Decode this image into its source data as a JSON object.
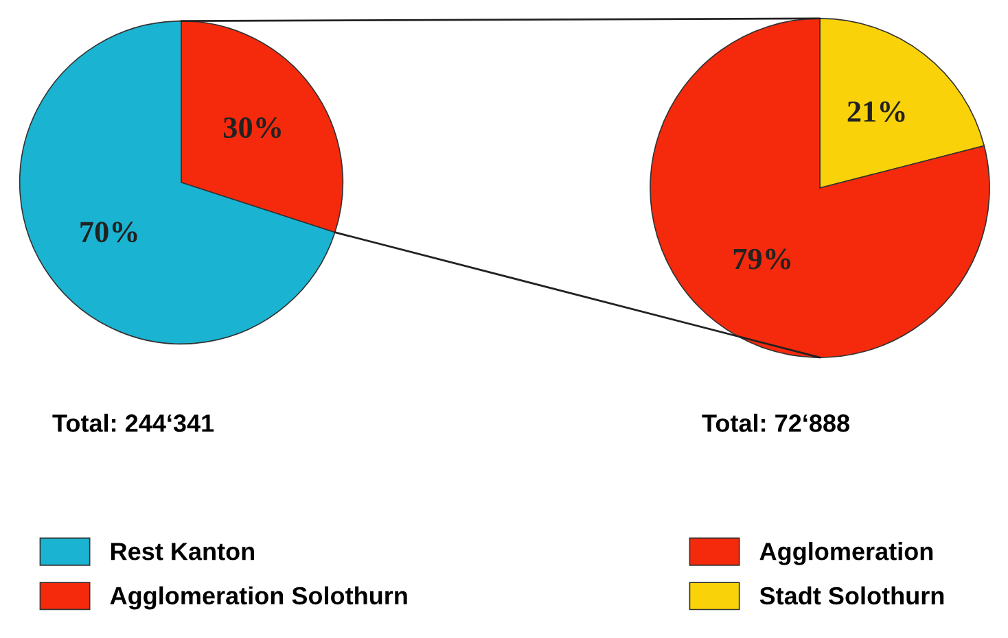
{
  "chart_data": [
    {
      "type": "pie",
      "categories": [
        "Rest Kanton",
        "Agglomeration Solothurn"
      ],
      "values": [
        70,
        30
      ],
      "colors": [
        "#1ab4d2",
        "#f52a0c"
      ],
      "value_labels": [
        "70%",
        "30%"
      ],
      "legend": "bottom",
      "annotations": [
        "Total: 244‘341"
      ]
    },
    {
      "type": "pie",
      "categories": [
        "Agglomeration",
        "Stadt Solothurn"
      ],
      "values": [
        79,
        21
      ],
      "colors": [
        "#f52a0c",
        "#fad20a"
      ],
      "value_labels": [
        "79%",
        "21%"
      ],
      "legend": "bottom",
      "annotations": [
        "Total: 72‘888"
      ]
    }
  ]
}
